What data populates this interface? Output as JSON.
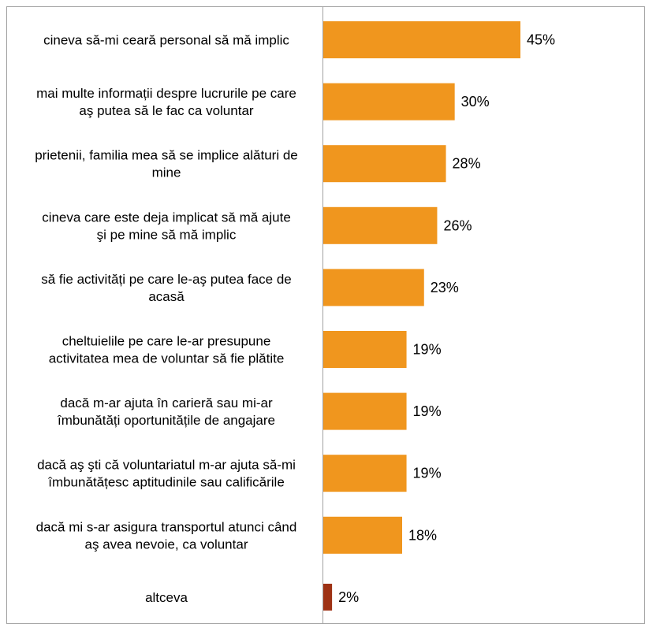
{
  "chart_data": {
    "type": "bar",
    "orientation": "horizontal",
    "categories": [
      [
        "cineva să-mi ceară personal să mă implic"
      ],
      [
        "mai multe informații despre lucrurile pe care",
        "aş putea să le fac ca voluntar"
      ],
      [
        "prietenii, familia mea să se implice alături de",
        "mine"
      ],
      [
        "cineva care este deja implicat să mă ajute",
        "şi pe mine să mă implic"
      ],
      [
        "să fie activități pe care le-aş putea face de",
        "acasă"
      ],
      [
        "cheltuielile pe care le-ar presupune",
        "activitatea mea de voluntar să fie plătite"
      ],
      [
        "dacă m-ar ajuta în carieră sau mi-ar",
        "îmbunătăți oportunitățile de angajare"
      ],
      [
        "dacă aş şti că voluntariatul m-ar ajuta să-mi",
        "îmbunătățesc aptitudinile sau calificările"
      ],
      [
        "dacă mi s-ar asigura transportul atunci când",
        "aş avea nevoie, ca voluntar"
      ],
      [
        "altceva"
      ]
    ],
    "values": [
      45,
      30,
      28,
      26,
      23,
      19,
      19,
      19,
      18,
      2
    ],
    "value_labels": [
      "45%",
      "30%",
      "28%",
      "26%",
      "23%",
      "19%",
      "19%",
      "19%",
      "18%",
      "2%"
    ],
    "bar_colors": [
      "#F0961E",
      "#F0961E",
      "#F0961E",
      "#F0961E",
      "#F0961E",
      "#F0961E",
      "#F0961E",
      "#F0961E",
      "#F0961E",
      "#9E3214"
    ],
    "xlim": [
      0,
      55
    ],
    "grid": false,
    "legend": "none",
    "title": "",
    "xlabel": "",
    "ylabel": ""
  }
}
